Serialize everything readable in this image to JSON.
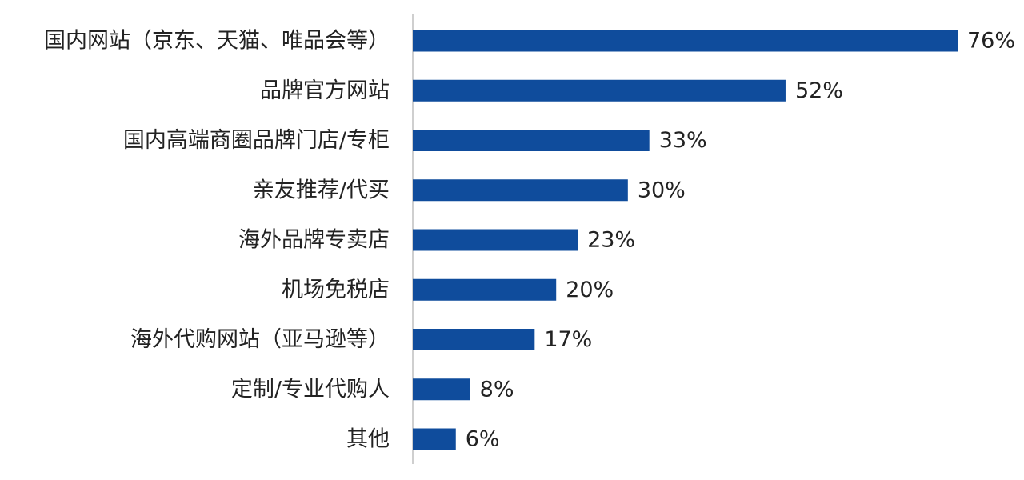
{
  "colors": {
    "bar": "#0F4C9C",
    "axis": "#BFBFBF",
    "text": "#222222"
  },
  "chart_data": {
    "type": "bar",
    "orientation": "horizontal",
    "categories": [
      "国内网站（京东、天猫、唯品会等）",
      "品牌官方网站",
      "国内高端商圈品牌门店/专柜",
      "亲友推荐/代买",
      "海外品牌专卖店",
      "机场免税店",
      "海外代购网站（亚马逊等）",
      "定制/专业代购人",
      "其他"
    ],
    "values": [
      76,
      52,
      33,
      30,
      23,
      20,
      17,
      8,
      6
    ],
    "value_labels": [
      "76%",
      "52%",
      "33%",
      "30%",
      "23%",
      "20%",
      "17%",
      "8%",
      "6%"
    ],
    "value_unit": "%",
    "xlim": [
      0,
      76
    ],
    "grid": false,
    "legend": "none"
  }
}
